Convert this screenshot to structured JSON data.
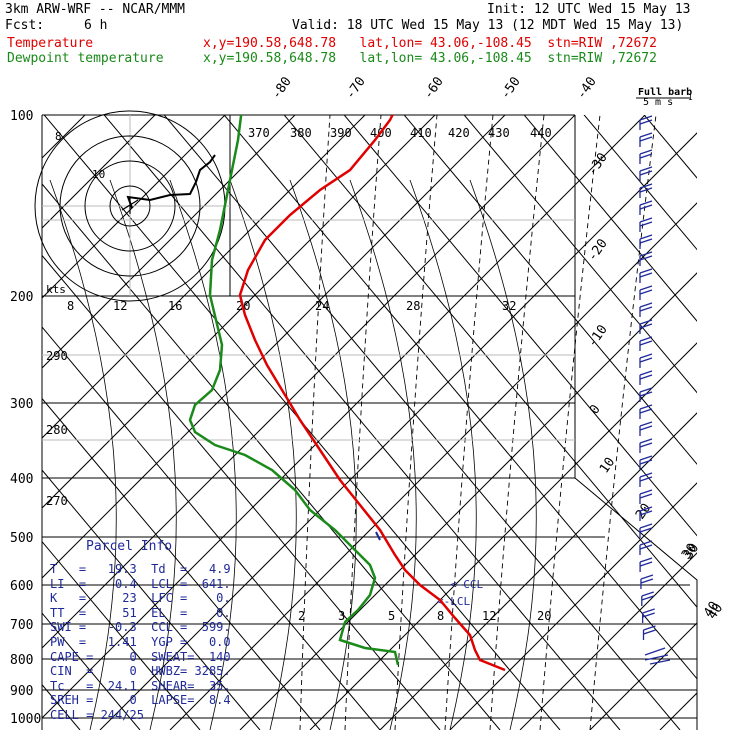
{
  "header": {
    "line1_left": "3km ARW-WRF -- NCAR/MMM",
    "line1_right": "Init: 12 UTC Wed 15 May 13",
    "fcst_label": "Fcst:",
    "fcst_value": "6 h",
    "valid": "Valid: 18 UTC Wed 15 May 13 (12 MDT Wed 15 May 13)",
    "temp_name": "Temperature",
    "temp_loc": "x,y=190.58,648.78   lat,lon= 43.06,-108.45  stn=RIW ,72672",
    "dew_name": "Dewpoint temperature",
    "dew_loc": "x,y=190.58,648.78   lat,lon= 43.06,-108.45  stn=RIW ,72672",
    "temp_color": "#e00000",
    "dew_color": "#1a8a1a"
  },
  "chart_data": {
    "type": "line",
    "pressure_levels": [
      "100",
      "200",
      "300",
      "400",
      "500",
      "600",
      "700",
      "800",
      "900",
      "1000"
    ],
    "temperature_labels": [
      "-80",
      "-70",
      "-60",
      "-50",
      "-40",
      "-30",
      "-20",
      "-10",
      "0",
      "10",
      "20",
      "30",
      "40"
    ],
    "theta_labels": [
      "370",
      "380",
      "390",
      "400",
      "410",
      "420",
      "430",
      "440"
    ],
    "theta_low_labels": [
      "290",
      "280",
      "270"
    ],
    "mixing_ratio_labels": [
      "2",
      "3",
      "5",
      "8",
      "12",
      "20"
    ],
    "ccl_label": "CCL",
    "lcl_label": "LCL",
    "series": [
      {
        "name": "Temperature",
        "points": [
          [
            400,
            100
          ],
          [
            390,
            120
          ],
          [
            375,
            140
          ],
          [
            350,
            170
          ],
          [
            320,
            190
          ],
          [
            290,
            215
          ],
          [
            265,
            240
          ],
          [
            248,
            270
          ],
          [
            240,
            295
          ],
          [
            245,
            315
          ],
          [
            255,
            340
          ],
          [
            267,
            365
          ],
          [
            282,
            390
          ],
          [
            300,
            420
          ],
          [
            320,
            450
          ],
          [
            340,
            480
          ],
          [
            360,
            505
          ],
          [
            380,
            530
          ],
          [
            395,
            555
          ],
          [
            405,
            570
          ],
          [
            420,
            585
          ],
          [
            440,
            600
          ],
          [
            455,
            618
          ],
          [
            470,
            635
          ],
          [
            475,
            650
          ],
          [
            480,
            660
          ],
          [
            505,
            670
          ]
        ]
      },
      {
        "name": "Dewpoint temperature",
        "points": [
          [
            243,
            100
          ],
          [
            238,
            140
          ],
          [
            232,
            170
          ],
          [
            226,
            200
          ],
          [
            220,
            230
          ],
          [
            212,
            260
          ],
          [
            210,
            295
          ],
          [
            216,
            320
          ],
          [
            222,
            345
          ],
          [
            220,
            370
          ],
          [
            212,
            390
          ],
          [
            195,
            405
          ],
          [
            190,
            420
          ],
          [
            195,
            432
          ],
          [
            215,
            445
          ],
          [
            245,
            455
          ],
          [
            272,
            470
          ],
          [
            295,
            490
          ],
          [
            310,
            510
          ],
          [
            335,
            530
          ],
          [
            355,
            550
          ],
          [
            370,
            565
          ],
          [
            375,
            578
          ],
          [
            370,
            595
          ],
          [
            358,
            610
          ],
          [
            345,
            622
          ],
          [
            340,
            640
          ],
          [
            365,
            648
          ],
          [
            395,
            652
          ],
          [
            398,
            665
          ]
        ]
      }
    ],
    "hodograph": {
      "rings": [
        "8",
        "10",
        "10"
      ],
      "label": "kts",
      "speed_labels": [
        "8",
        "12",
        "16",
        "20",
        "24",
        "28",
        "32"
      ]
    },
    "wind_legend": {
      "label1": "Full barb",
      "label2": "5 m s",
      "sup": "-1"
    },
    "small_axis_labels": [
      "30",
      "40"
    ]
  },
  "parcel": {
    "title": "Parcel Info",
    "rows": [
      "T   =   19.3  Td  =   4.9",
      "LI  =    0.4  LCL =  641.",
      "K   =     23  LFC =    0.",
      "TT  =     51  EL  =    0.",
      "SWI =   -0.3  CCL =  599.",
      "PW  =   1.41  YGP =   0.0",
      "CAPE =     0  SWEAT=  140",
      "CIN  =     0  HWBZ= 3285.",
      "Tc   =  24.1  SHEAR=  35.",
      "SREH =     0  LAPSE=  8.4",
      "CELL = 244/25"
    ]
  }
}
